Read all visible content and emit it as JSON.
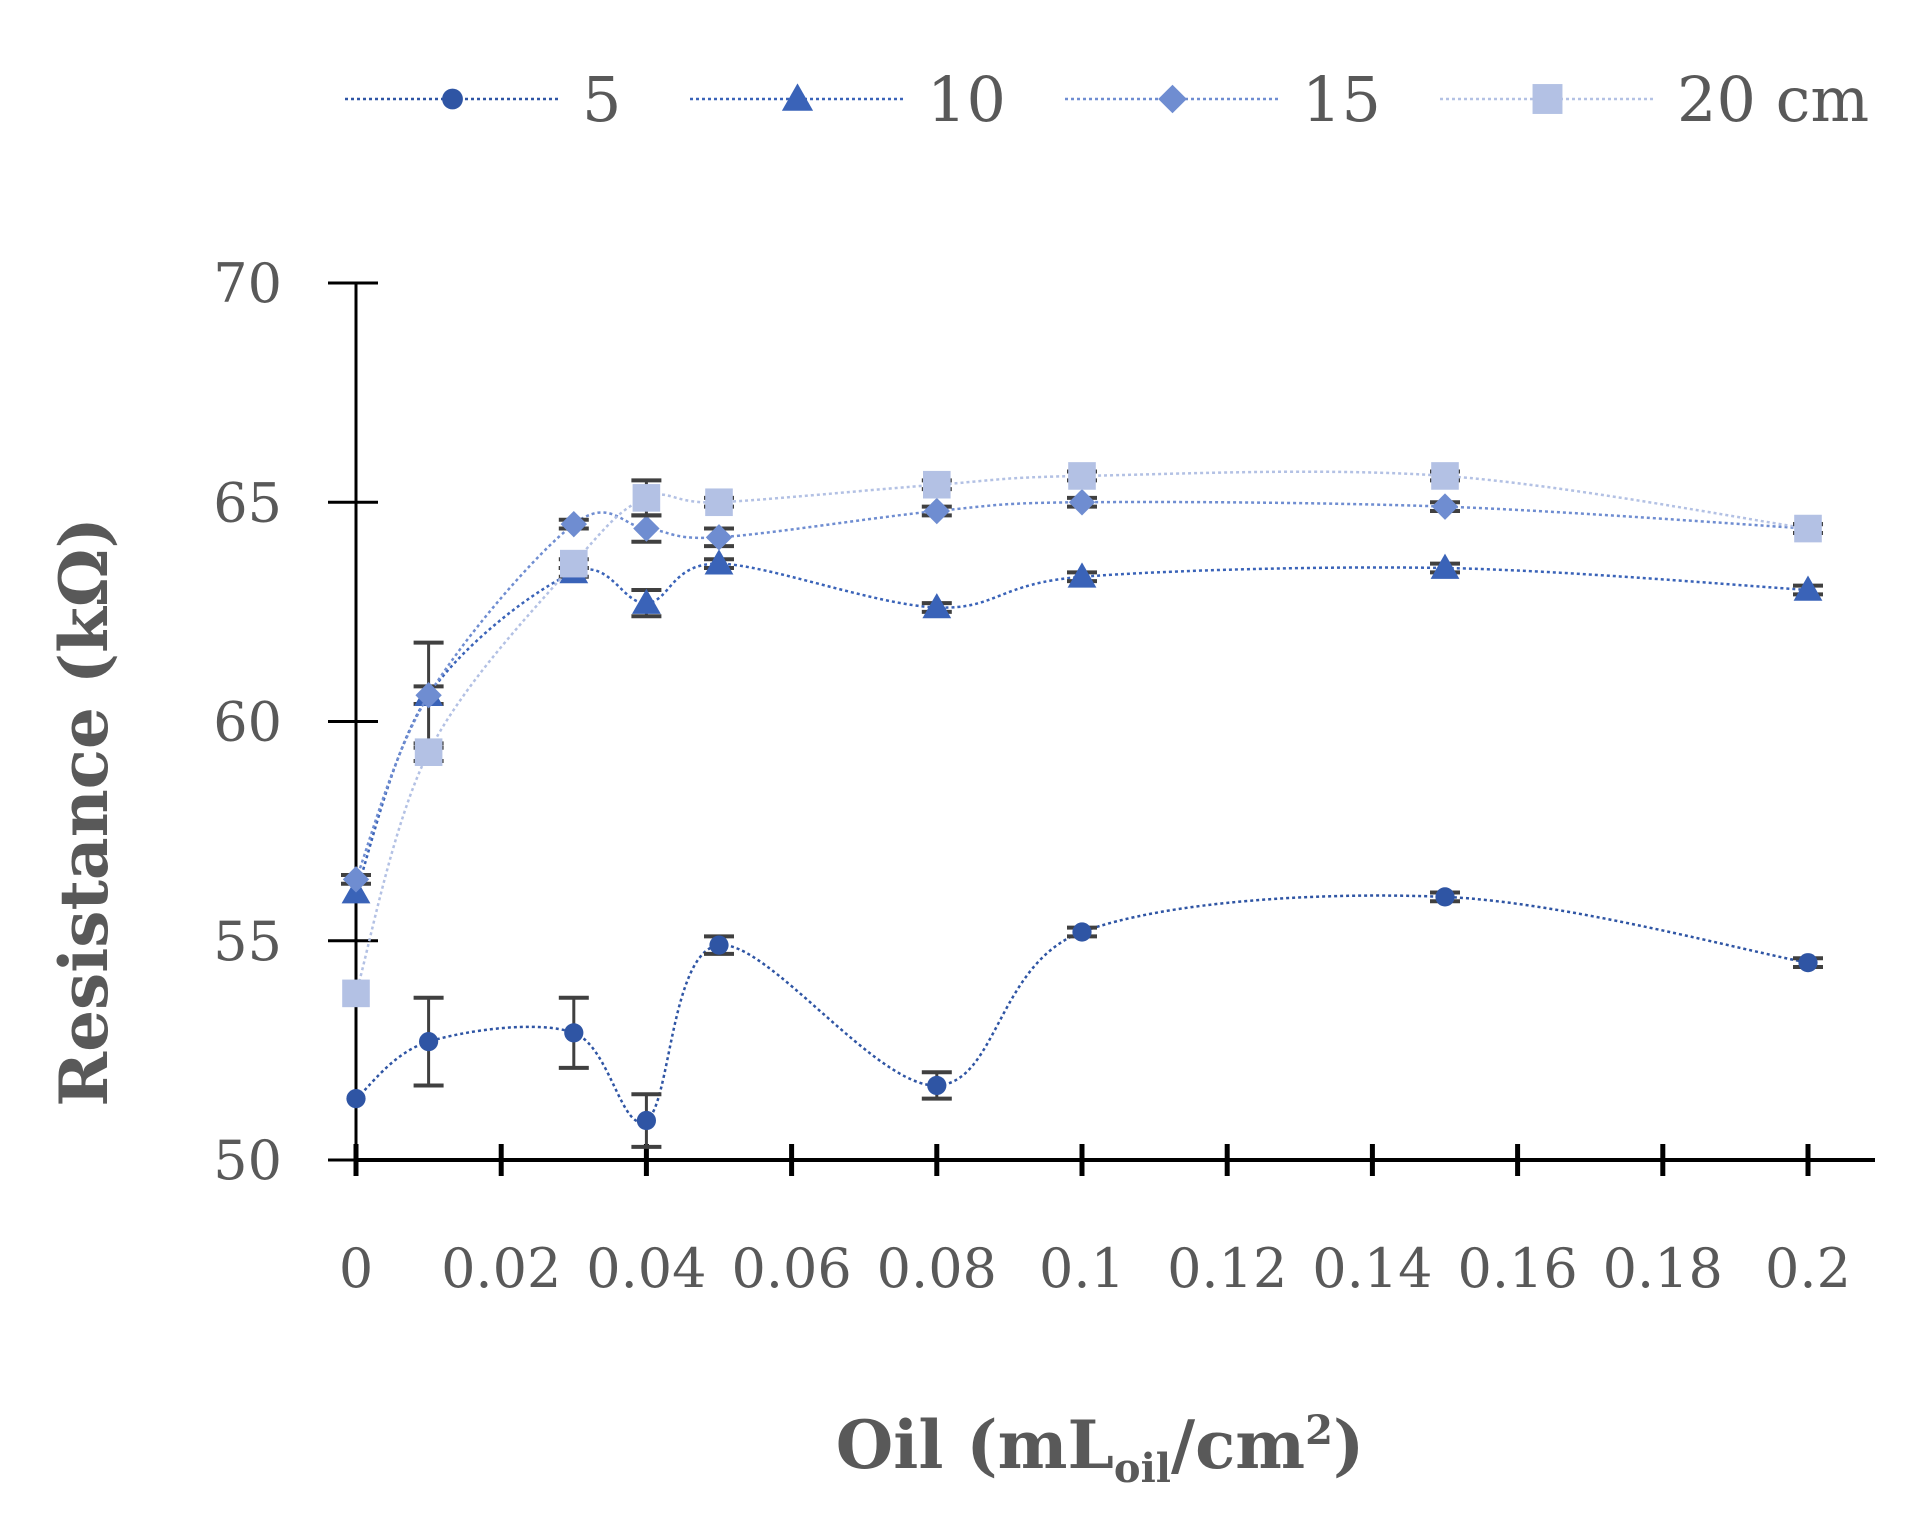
{
  "chart_data": {
    "type": "line",
    "title": "",
    "xlabel": "Oil (mLoil/cm2)",
    "xlabel_parts": {
      "main": "Oil (mL",
      "subscript": "oil",
      "unit": "/cm",
      "superscript": "2",
      "close": ")"
    },
    "ylabel": "Resistance (kΩ)",
    "xlim": [
      0,
      0.2
    ],
    "ylim": [
      50,
      70
    ],
    "x_ticks": [
      0,
      0.02,
      0.04,
      0.06,
      0.08,
      0.1,
      0.12,
      0.14,
      0.16,
      0.18,
      0.2
    ],
    "x_tick_labels": [
      "0",
      "0.02",
      "0.04",
      "0.06",
      "0.08",
      "0.1",
      "0.12",
      "0.14",
      "0.16",
      "0.18",
      "0.2"
    ],
    "y_ticks": [
      50,
      55,
      60,
      65,
      70
    ],
    "y_tick_labels": [
      "50",
      "55",
      "60",
      "65",
      "70"
    ],
    "legend_position": "top",
    "series": [
      {
        "name": "5",
        "marker": "circle",
        "color": "#2F55A4",
        "x": [
          0,
          0.01,
          0.03,
          0.04,
          0.05,
          0.08,
          0.1,
          0.15,
          0.2
        ],
        "y": [
          51.4,
          52.7,
          52.9,
          50.9,
          54.9,
          51.7,
          55.2,
          56.0,
          54.5
        ],
        "err": [
          0,
          1.0,
          0.8,
          0.6,
          0.2,
          0.3,
          0.1,
          0.1,
          0.1
        ]
      },
      {
        "name": "10",
        "marker": "triangle",
        "color": "#3A63B8",
        "x": [
          0,
          0.01,
          0.03,
          0.04,
          0.05,
          0.08,
          0.1,
          0.15,
          0.2
        ],
        "y": [
          56.1,
          60.6,
          63.4,
          62.7,
          63.6,
          62.6,
          63.3,
          63.5,
          63.0
        ],
        "err": [
          0,
          0.2,
          0.1,
          0.3,
          0.1,
          0.1,
          0.1,
          0.1,
          0.1
        ]
      },
      {
        "name": "15",
        "marker": "diamond",
        "color": "#6F8DD1",
        "x": [
          0,
          0.01,
          0.03,
          0.04,
          0.05,
          0.08,
          0.1,
          0.15,
          0.2
        ],
        "y": [
          56.4,
          60.6,
          64.5,
          64.4,
          64.2,
          64.8,
          65.0,
          64.9,
          64.4
        ],
        "err": [
          0.1,
          1.2,
          0.1,
          0.3,
          0.2,
          0.1,
          0.1,
          0.1,
          0.1
        ]
      },
      {
        "name": "20 cm",
        "marker": "square",
        "color": "#B3C1E4",
        "x": [
          0,
          0.01,
          0.03,
          0.04,
          0.05,
          0.08,
          0.1,
          0.15,
          0.2
        ],
        "y": [
          53.8,
          59.3,
          63.6,
          65.1,
          65.0,
          65.4,
          65.6,
          65.6,
          64.4
        ],
        "err": [
          0,
          0.2,
          0.1,
          0.4,
          0.1,
          0.1,
          0.1,
          0.1,
          0.1
        ]
      }
    ]
  }
}
